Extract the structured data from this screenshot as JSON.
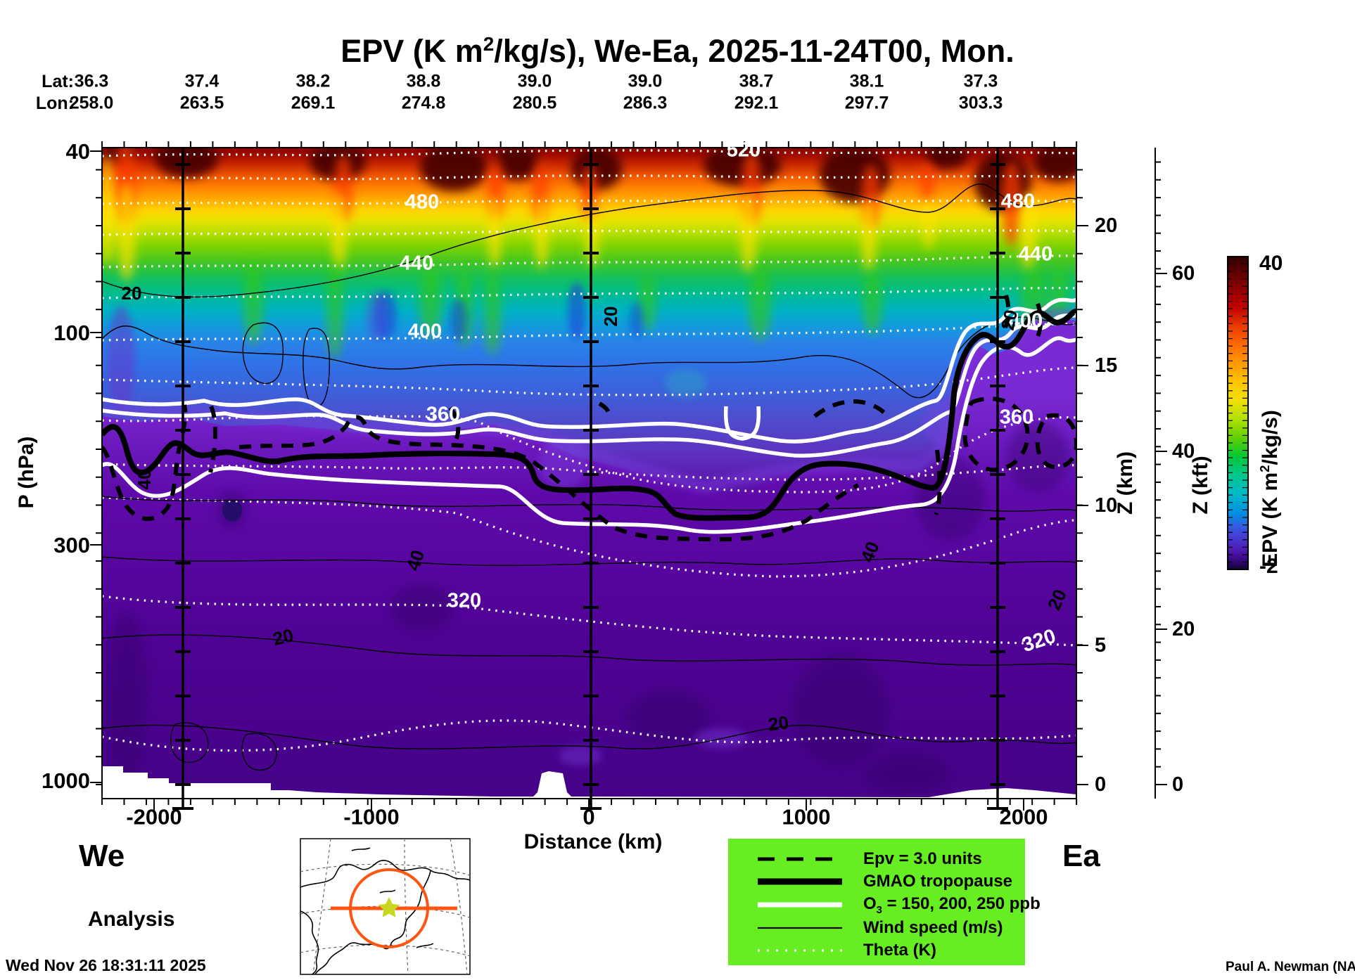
{
  "title": {
    "pre": "EPV (K m",
    "sup": "2",
    "post": "/kg/s), We-Ea, 2025-11-24T00, Mon."
  },
  "top_axis": {
    "lat_label": "Lat:",
    "lon_label": "Lon:",
    "lat_values": [
      "36.3",
      "37.4",
      "38.2",
      "38.8",
      "39.0",
      "39.0",
      "38.7",
      "38.1",
      "37.3"
    ],
    "lon_values": [
      "258.0",
      "263.5",
      "269.1",
      "274.8",
      "280.5",
      "286.3",
      "292.1",
      "297.7",
      "303.3"
    ]
  },
  "y_axis": {
    "label": "P (hPa)",
    "ticks": [
      "40",
      "100",
      "300",
      "1000"
    ]
  },
  "x_axis": {
    "label": "Distance (km)",
    "ticks": [
      "-2000",
      "-1000",
      "0",
      "1000",
      "2000"
    ]
  },
  "z_km_axis": {
    "label": "Z (km)",
    "ticks": [
      "20",
      "15",
      "10",
      "5",
      "0"
    ]
  },
  "z_kft_axis": {
    "label": "Z (kft)",
    "ticks": [
      "60",
      "40",
      "20",
      "0"
    ]
  },
  "colorbar": {
    "max": "40",
    "min": "-2",
    "label": {
      "pre": "EPV (K m",
      "sup": "2",
      "post": "/kg/s)"
    }
  },
  "plot_labels": {
    "theta": {
      "520": "520",
      "480": "480",
      "440": "440",
      "400": "400",
      "360": "360",
      "320": "320"
    },
    "wind": {
      "20": "20",
      "40": "40"
    }
  },
  "legend": {
    "items": [
      {
        "label": "Epv = 3.0 units"
      },
      {
        "label": "GMAO tropopause"
      },
      {
        "pre": "O",
        "sub": "3",
        "post": " = 150, 200, 250 ppb"
      },
      {
        "label": "Wind speed (m/s)"
      },
      {
        "label": "Theta (K)"
      }
    ]
  },
  "footer": {
    "west": "We",
    "east": "Ea",
    "run_type": "Analysis",
    "timestamp": "Wed Nov 26 18:31:11 2025",
    "credit": "Paul A. Newman (NASA"
  },
  "chart_data": {
    "type": "heatmap",
    "title": "EPV (K m2/kg/s), We-Ea, 2025-11-24T00, Mon.",
    "description": "Vertical cross-section (west-east) of Ertel potential vorticity with overlaid contours",
    "x": {
      "label": "Distance (km)",
      "range": [
        -2230,
        2230
      ],
      "ticks": [
        -2000,
        -1000,
        0,
        1000,
        2000
      ]
    },
    "y_pressure": {
      "label": "P (hPa)",
      "ticks": [
        40,
        100,
        300,
        1000
      ],
      "scale": "pressure-altitude"
    },
    "y_height_km": {
      "label": "Z (km)",
      "ticks": [
        20,
        15,
        10,
        5,
        0
      ]
    },
    "y_height_kft": {
      "label": "Z (kft)",
      "ticks": [
        60,
        40,
        20,
        0
      ]
    },
    "colorbar": {
      "label": "EPV (K m2/kg/s)",
      "min": -2,
      "max": 40
    },
    "track": {
      "lat": [
        36.3,
        37.4,
        38.2,
        38.8,
        39.0,
        39.0,
        38.7,
        38.1,
        37.3
      ],
      "lon": [
        258.0,
        263.5,
        269.1,
        274.8,
        280.5,
        286.3,
        292.1,
        297.7,
        303.3
      ]
    },
    "overlays": [
      {
        "name": "Epv = 3.0 units",
        "style": "black dashed"
      },
      {
        "name": "GMAO tropopause",
        "style": "black thick"
      },
      {
        "name": "O3 = 150, 200, 250 ppb",
        "style": "white thick"
      },
      {
        "name": "Wind speed (m/s)",
        "style": "black thin",
        "labeled_levels": [
          20,
          40
        ]
      },
      {
        "name": "Theta (K)",
        "style": "white dotted",
        "labeled_levels": [
          320,
          360,
          400,
          440,
          480,
          520
        ]
      }
    ],
    "annotations": [
      "We (left end)",
      "Ea (right end)",
      "Analysis"
    ]
  }
}
